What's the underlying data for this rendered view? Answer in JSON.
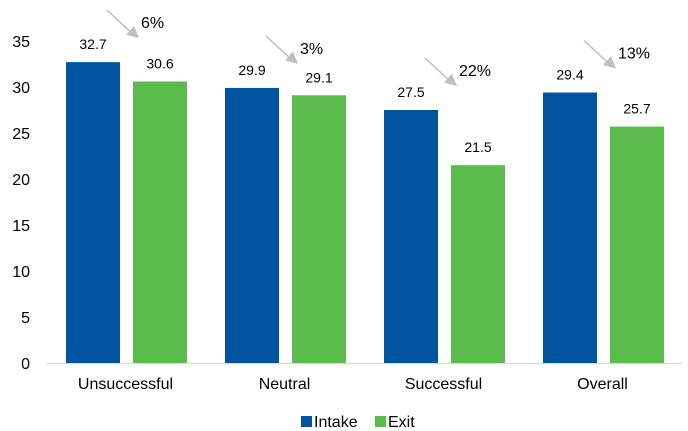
{
  "chart_data": {
    "type": "bar",
    "categories": [
      "Unsuccessful",
      "Neutral",
      "Successful",
      "Overall"
    ],
    "series": [
      {
        "name": "Intake",
        "values": [
          32.7,
          29.9,
          27.5,
          29.4
        ],
        "color": "#00549f"
      },
      {
        "name": "Exit",
        "values": [
          30.6,
          29.1,
          21.5,
          25.7
        ],
        "color": "#5bbb4c"
      }
    ],
    "annotations": [
      "6%",
      "3%",
      "22%",
      "13%"
    ],
    "title": "",
    "xlabel": "",
    "ylabel": "",
    "ylim": [
      0,
      35
    ],
    "yticks": [
      0,
      5,
      10,
      15,
      20,
      25,
      30,
      35
    ],
    "grid": false,
    "legend": "bottom-center",
    "colors": {
      "arrow": "#bfbfbf",
      "axis": "#d9d9d9",
      "text": "#000000"
    }
  }
}
